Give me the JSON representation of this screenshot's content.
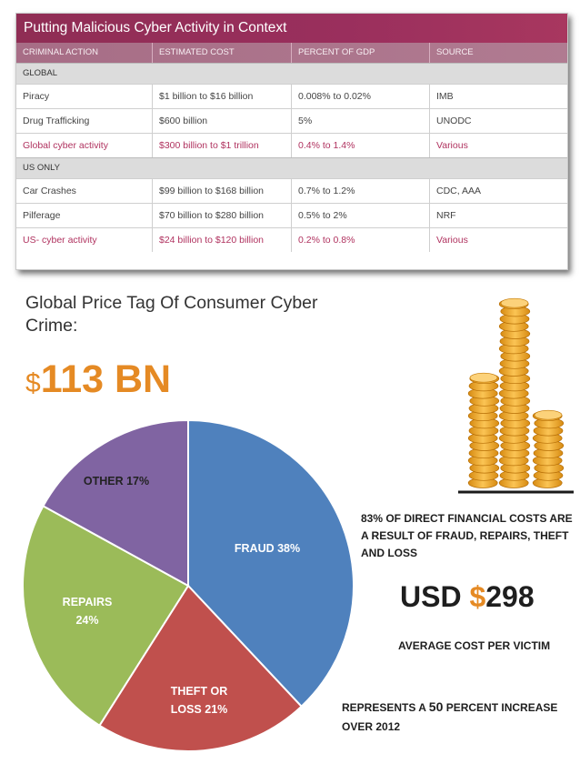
{
  "table": {
    "title": "Putting Malicious Cyber Activity in Context",
    "columns": [
      "CRIMINAL ACTION",
      "ESTIMATED COST",
      "PERCENT OF GDP",
      "SOURCE"
    ],
    "sections": [
      {
        "label": "GLOBAL",
        "rows": [
          {
            "cells": [
              "Piracy",
              "$1 billion to $16 billion",
              "0.008% to 0.02%",
              "IMB"
            ],
            "highlight": false
          },
          {
            "cells": [
              "Drug Trafficking",
              "$600 billion",
              "5%",
              "UNODC"
            ],
            "highlight": false
          },
          {
            "cells": [
              "Global cyber activity",
              "$300 billion to $1 trillion",
              "0.4% to 1.4%",
              "Various"
            ],
            "highlight": true
          }
        ]
      },
      {
        "label": "US ONLY",
        "rows": [
          {
            "cells": [
              "Car Crashes",
              "$99 billion to $168 billion",
              "0.7% to 1.2%",
              "CDC, AAA"
            ],
            "highlight": false
          },
          {
            "cells": [
              "Pilferage",
              "$70 billion to $280 billion",
              "0.5% to 2%",
              "NRF"
            ],
            "highlight": false
          },
          {
            "cells": [
              "US- cyber activity",
              "$24 billion to $120 billion",
              "0.2% to 0.8%",
              "Various"
            ],
            "highlight": true
          }
        ]
      }
    ]
  },
  "headline": {
    "label": "Global Price Tag Of Consumer Cyber Crime:",
    "currency": "$",
    "value": "113 BN"
  },
  "chart_data": {
    "type": "pie",
    "slices": [
      {
        "name": "FRAUD",
        "label": "FRAUD 38%",
        "value": 38,
        "color": "#4f81bd",
        "text_color": "#ffffff"
      },
      {
        "name": "THEFT OR LOSS",
        "label": "THEFT OR\nLOSS 21%",
        "value": 21,
        "color": "#c0504d",
        "text_color": "#ffffff"
      },
      {
        "name": "REPAIRS",
        "label": "REPAIRS\n24%",
        "value": 24,
        "color": "#9bbb59",
        "text_color": "#ffffff"
      },
      {
        "name": "OTHER",
        "label": "OTHER 17%",
        "value": 17,
        "color": "#8064a2",
        "text_color": "#222222"
      }
    ],
    "start_angle_deg": 0,
    "direction": "clockwise"
  },
  "stats": {
    "financial_note": "83% OF DIRECT FINANCIAL COSTS ARE A RESULT OF FRAUD, REPAIRS, THEFT AND LOSS",
    "avg_prefix": "USD ",
    "avg_currency": "$",
    "avg_value": "298",
    "avg_caption": "AVERAGE COST PER VICTIM",
    "increase_pre": "REPRESENTS A ",
    "increase_num": "50",
    "increase_post": " PERCENT INCREASE OVER 2012"
  },
  "colors": {
    "accent_orange": "#e58a24",
    "table_header": "#9a2f5d",
    "highlight_text": "#b0325f"
  }
}
